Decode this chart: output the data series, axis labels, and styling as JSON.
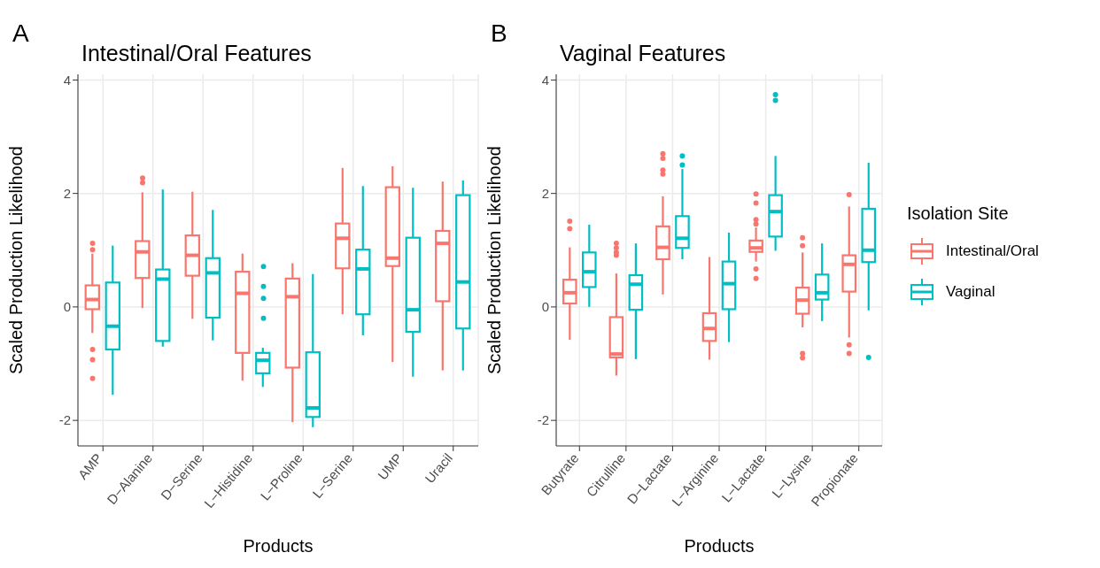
{
  "chart_data": [
    {
      "type": "box",
      "title": "Intestinal/Oral Features",
      "annotations": [
        "A"
      ],
      "xlabel": "Products",
      "ylabel": "Scaled Production Likelihood",
      "categories": [
        "AMP",
        "D−Alanine",
        "D−Serine",
        "L−Histidine",
        "L−Proline",
        "L−Serine",
        "UMP",
        "Uracil"
      ],
      "ylim": [
        -2.45,
        4.1
      ],
      "yticks": [
        -2,
        0,
        2,
        4
      ],
      "grid": true,
      "legend": false,
      "series": [
        {
          "color": "#f8766d",
          "boxes": [
            {
              "low": -0.46,
              "q1": -0.04,
              "median": 0.13,
              "q3": 0.38,
              "high": 0.94,
              "outliers": [
                1.12,
                1.01,
                -0.75,
                -0.93,
                -1.26
              ]
            },
            {
              "low": -0.02,
              "q1": 0.51,
              "median": 0.97,
              "q3": 1.16,
              "high": 2.02,
              "outliers": [
                2.27,
                2.19
              ]
            },
            {
              "low": -0.21,
              "q1": 0.55,
              "median": 0.91,
              "q3": 1.26,
              "high": 2.03
            },
            {
              "low": -1.3,
              "q1": -0.81,
              "median": 0.24,
              "q3": 0.62,
              "high": 0.94
            },
            {
              "low": -2.03,
              "q1": -1.07,
              "median": 0.18,
              "q3": 0.5,
              "high": 0.77
            },
            {
              "low": -0.13,
              "q1": 0.68,
              "median": 1.21,
              "q3": 1.47,
              "high": 2.45
            },
            {
              "low": -0.97,
              "q1": 0.72,
              "median": 0.86,
              "q3": 2.11,
              "high": 2.48
            },
            {
              "low": -1.12,
              "q1": 0.1,
              "median": 1.12,
              "q3": 1.34,
              "high": 2.21
            }
          ]
        },
        {
          "color": "#00bfc4",
          "boxes": [
            {
              "low": -1.55,
              "q1": -0.75,
              "median": -0.34,
              "q3": 0.43,
              "high": 1.08
            },
            {
              "low": -0.7,
              "q1": -0.6,
              "median": 0.49,
              "q3": 0.66,
              "high": 2.07
            },
            {
              "low": -0.59,
              "q1": -0.19,
              "median": 0.6,
              "q3": 0.86,
              "high": 1.71
            },
            {
              "low": -1.41,
              "q1": -1.17,
              "median": -0.94,
              "q3": -0.81,
              "high": -0.72,
              "outliers": [
                0.71,
                0.36,
                0.15,
                -0.2
              ]
            },
            {
              "low": -2.12,
              "q1": -1.94,
              "median": -1.78,
              "q3": -0.8,
              "high": 0.58
            },
            {
              "low": -0.5,
              "q1": -0.13,
              "median": 0.67,
              "q3": 1.01,
              "high": 2.13
            },
            {
              "low": -1.23,
              "q1": -0.44,
              "median": -0.05,
              "q3": 1.22,
              "high": 2.1
            },
            {
              "low": -1.12,
              "q1": -0.38,
              "median": 0.44,
              "q3": 1.97,
              "high": 2.23
            }
          ]
        }
      ]
    },
    {
      "type": "box",
      "title": "Vaginal Features",
      "annotations": [
        "B"
      ],
      "xlabel": "Products",
      "ylabel": "Scaled Production Likelihood",
      "categories": [
        "Butyrate",
        "Citrulline",
        "D−Lactate",
        "L−Arginine",
        "L−Lactate",
        "L−Lysine",
        "Propionate"
      ],
      "ylim": [
        -2.45,
        4.1
      ],
      "yticks": [
        -2,
        0,
        2,
        4
      ],
      "grid": true,
      "legend": "right",
      "legend_title": "Isolation Site",
      "series": [
        {
          "name": "Intestinal/Oral",
          "color": "#f8766d",
          "boxes": [
            {
              "low": -0.58,
              "q1": 0.06,
              "median": 0.25,
              "q3": 0.48,
              "high": 1.05,
              "outliers": [
                1.51,
                1.38
              ]
            },
            {
              "low": -1.21,
              "q1": -0.89,
              "median": -0.83,
              "q3": -0.18,
              "high": 0.59,
              "outliers": [
                1.12,
                1.04,
                0.96,
                0.91
              ]
            },
            {
              "low": 0.22,
              "q1": 0.84,
              "median": 1.05,
              "q3": 1.42,
              "high": 1.95,
              "outliers": [
                2.7,
                2.62,
                2.41,
                2.34
              ]
            },
            {
              "low": -0.93,
              "q1": -0.6,
              "median": -0.38,
              "q3": -0.11,
              "high": 0.88
            },
            {
              "low": 0.8,
              "q1": 0.97,
              "median": 1.04,
              "q3": 1.17,
              "high": 1.4,
              "outliers": [
                1.99,
                1.83,
                1.54,
                1.46,
                0.67,
                0.5
              ]
            },
            {
              "low": -0.36,
              "q1": -0.12,
              "median": 0.12,
              "q3": 0.34,
              "high": 0.96,
              "outliers": [
                1.22,
                1.08,
                -0.82,
                -0.9
              ]
            },
            {
              "low": -0.54,
              "q1": 0.27,
              "median": 0.75,
              "q3": 0.91,
              "high": 1.77,
              "outliers": [
                1.98,
                -0.67,
                -0.82
              ]
            }
          ]
        },
        {
          "name": "Vaginal",
          "color": "#00bfc4",
          "boxes": [
            {
              "low": 0,
              "q1": 0.35,
              "median": 0.62,
              "q3": 0.96,
              "high": 1.45
            },
            {
              "low": -0.92,
              "q1": -0.05,
              "median": 0.4,
              "q3": 0.56,
              "high": 1.12
            },
            {
              "low": 0.84,
              "q1": 1.04,
              "median": 1.21,
              "q3": 1.6,
              "high": 2.43,
              "outliers": [
                2.66,
                2.5
              ]
            },
            {
              "low": -0.62,
              "q1": -0.04,
              "median": 0.41,
              "q3": 0.8,
              "high": 1.31
            },
            {
              "low": 0.99,
              "q1": 1.24,
              "median": 1.68,
              "q3": 1.97,
              "high": 2.66,
              "outliers": [
                3.74,
                3.64
              ]
            },
            {
              "low": -0.25,
              "q1": 0.13,
              "median": 0.25,
              "q3": 0.57,
              "high": 1.12
            },
            {
              "low": -0.06,
              "q1": 0.79,
              "median": 1.0,
              "q3": 1.73,
              "high": 2.54,
              "outliers": [
                -0.89
              ]
            }
          ]
        }
      ]
    }
  ]
}
